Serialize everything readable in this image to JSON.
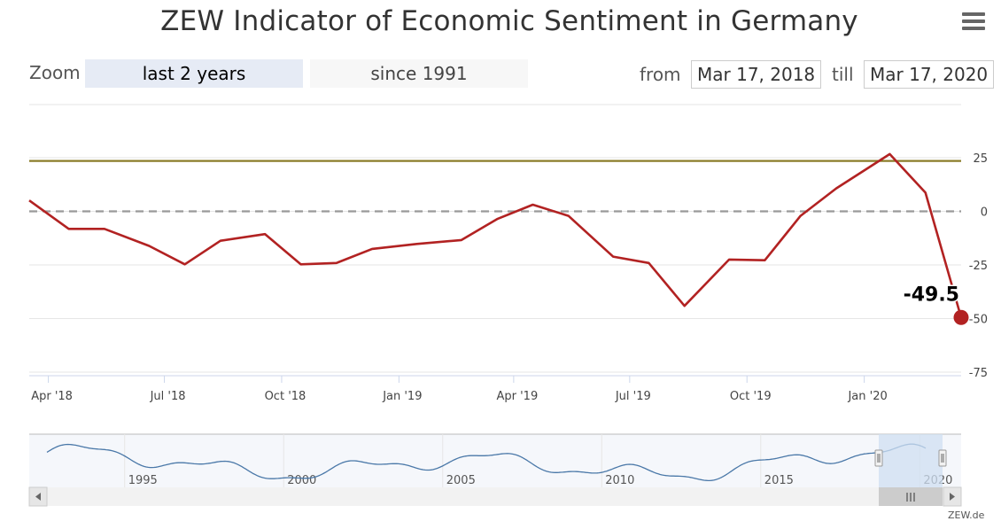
{
  "title": "ZEW Indicator of Economic Sentiment in Germany",
  "toolbar": {
    "zoom_label": "Zoom",
    "zoom_buttons": [
      "last 2 years",
      "since 1991"
    ],
    "active_zoom": "last 2 years",
    "from_label": "from",
    "from_value": "Mar 17, 2018",
    "till_label": "till",
    "till_value": "Mar 17, 2020"
  },
  "credit": "ZEW.de",
  "colors": {
    "series": "#b22222",
    "reference_line": "#8b7d2a",
    "zero_line": "#999999",
    "navigator_line": "#4a78a8",
    "navigator_mask": "#cfdff2"
  },
  "chart_data": {
    "type": "line",
    "title": "ZEW Indicator of Economic Sentiment in Germany",
    "xlabel": "",
    "ylabel": "",
    "x_range": [
      "2018-03-17",
      "2020-03-17"
    ],
    "ylim": [
      -75,
      25
    ],
    "y_ticks": [
      25,
      0,
      -25,
      -50,
      -75
    ],
    "x_tick_labels": [
      "Apr '18",
      "Jul '18",
      "Oct '18",
      "Jan '19",
      "Apr '19",
      "Jul '19",
      "Oct '19",
      "Jan '20"
    ],
    "x_tick_dates": [
      "2018-04-01",
      "2018-07-01",
      "2018-10-01",
      "2019-01-01",
      "2019-04-01",
      "2019-07-01",
      "2019-10-01",
      "2020-01-01"
    ],
    "grid": true,
    "reference_lines": [
      {
        "value": 23.5,
        "style": "solid"
      },
      {
        "value": 0,
        "style": "dashed"
      }
    ],
    "series": [
      {
        "points": [
          [
            "2018-03-17",
            5.1
          ],
          [
            "2018-04-17",
            -8.2
          ],
          [
            "2018-05-15",
            -8.2
          ],
          [
            "2018-06-19",
            -16.1
          ],
          [
            "2018-07-17",
            -24.7
          ],
          [
            "2018-08-14",
            -13.7
          ],
          [
            "2018-09-18",
            -10.6
          ],
          [
            "2018-10-16",
            -24.7
          ],
          [
            "2018-11-13",
            -24.1
          ],
          [
            "2018-12-11",
            -17.5
          ],
          [
            "2019-01-15",
            -15.2
          ],
          [
            "2019-02-19",
            -13.4
          ],
          [
            "2019-03-19",
            -3.6
          ],
          [
            "2019-04-16",
            3.1
          ],
          [
            "2019-05-14",
            -2.1
          ],
          [
            "2019-06-18",
            -21.1
          ],
          [
            "2019-07-16",
            -24.1
          ],
          [
            "2019-08-13",
            -44.1
          ],
          [
            "2019-09-17",
            -22.5
          ],
          [
            "2019-10-15",
            -22.8
          ],
          [
            "2019-11-12",
            -2.1
          ],
          [
            "2019-12-10",
            10.7
          ],
          [
            "2020-01-21",
            26.7
          ],
          [
            "2020-02-18",
            8.7
          ],
          [
            "2020-03-17",
            -49.5
          ]
        ]
      }
    ],
    "last_value_label": "-49.5",
    "navigator": {
      "x_tick_labels": [
        "1995",
        "2000",
        "2005",
        "2010",
        "2015",
        "2020"
      ],
      "x_tick_years": [
        1995,
        2000,
        2005,
        2010,
        2015,
        2020
      ],
      "range": [
        1991,
        2020.3
      ]
    }
  }
}
